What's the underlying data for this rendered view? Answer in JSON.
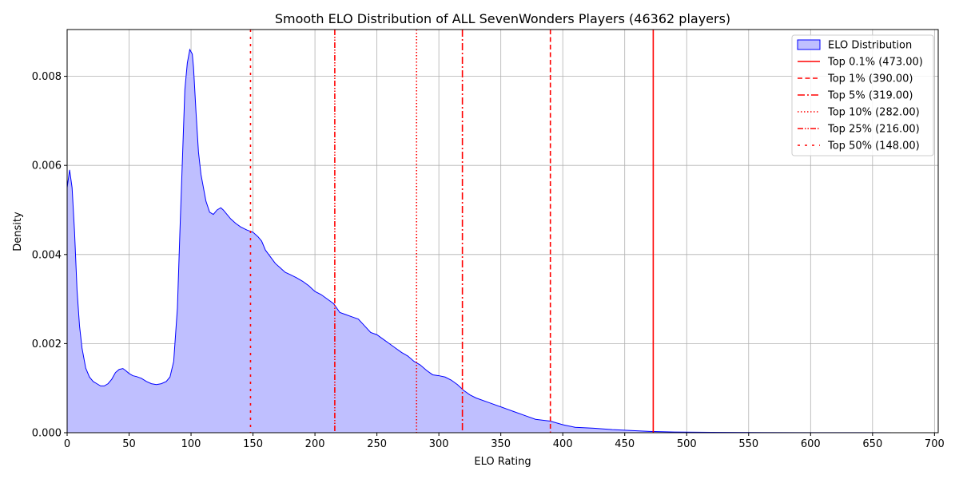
{
  "chart_data": {
    "type": "area",
    "title": "Smooth ELO Distribution of ALL SevenWonders Players (46362 players)",
    "xlabel": "ELO Rating",
    "ylabel": "Density",
    "xlim": [
      0,
      703
    ],
    "ylim": [
      0,
      0.00905
    ],
    "grid": true,
    "legend_position": "top-right",
    "x_ticks": [
      {
        "v": 0,
        "label": "0"
      },
      {
        "v": 50,
        "label": "50"
      },
      {
        "v": 100,
        "label": "100"
      },
      {
        "v": 150,
        "label": "150"
      },
      {
        "v": 200,
        "label": "200"
      },
      {
        "v": 250,
        "label": "250"
      },
      {
        "v": 300,
        "label": "300"
      },
      {
        "v": 350,
        "label": "350"
      },
      {
        "v": 400,
        "label": "400"
      },
      {
        "v": 450,
        "label": "450"
      },
      {
        "v": 500,
        "label": "500"
      },
      {
        "v": 550,
        "label": "550"
      },
      {
        "v": 600,
        "label": "600"
      },
      {
        "v": 650,
        "label": "650"
      },
      {
        "v": 700,
        "label": "700"
      }
    ],
    "y_ticks": [
      {
        "v": 0,
        "label": "0.000"
      },
      {
        "v": 0.002,
        "label": "0.002"
      },
      {
        "v": 0.004,
        "label": "0.004"
      },
      {
        "v": 0.006,
        "label": "0.006"
      },
      {
        "v": 0.008,
        "label": "0.008"
      }
    ],
    "series": [
      {
        "name": "ELO Distribution",
        "line_color": "#0000ff",
        "fill_color": "#bfbfff",
        "x": [
          0,
          2,
          4,
          6,
          8,
          10,
          12,
          15,
          18,
          21,
          24,
          27,
          30,
          33,
          36,
          39,
          42,
          45,
          47,
          50,
          53,
          56,
          60,
          64,
          68,
          72,
          76,
          80,
          83,
          86,
          89,
          91,
          93,
          95,
          97,
          99,
          101,
          102,
          104,
          106,
          108,
          112,
          115,
          118,
          121,
          124,
          126,
          129,
          132,
          136,
          140,
          145,
          150,
          154,
          157,
          160,
          164,
          168,
          172,
          176,
          180,
          185,
          190,
          195,
          200,
          205,
          210,
          215,
          220,
          225,
          230,
          235,
          240,
          245,
          250,
          255,
          260,
          265,
          270,
          275,
          280,
          285,
          290,
          295,
          300,
          305,
          310,
          315,
          320,
          325,
          330,
          340,
          350,
          360,
          370,
          378,
          390,
          400,
          410,
          425,
          440,
          455,
          470,
          490,
          520,
          560,
          600,
          640,
          668
        ],
        "y": [
          0.0055,
          0.0059,
          0.0055,
          0.0045,
          0.0032,
          0.0024,
          0.0019,
          0.00145,
          0.00125,
          0.00115,
          0.0011,
          0.00105,
          0.00105,
          0.0011,
          0.0012,
          0.00135,
          0.00142,
          0.00144,
          0.0014,
          0.00133,
          0.00128,
          0.00126,
          0.00122,
          0.00115,
          0.0011,
          0.00108,
          0.0011,
          0.00115,
          0.00125,
          0.0016,
          0.0028,
          0.0045,
          0.0061,
          0.0077,
          0.0083,
          0.0086,
          0.0085,
          0.0082,
          0.0072,
          0.0063,
          0.0058,
          0.0052,
          0.00495,
          0.0049,
          0.005,
          0.00505,
          0.005,
          0.0049,
          0.0048,
          0.0047,
          0.00462,
          0.00455,
          0.0045,
          0.0044,
          0.0043,
          0.0041,
          0.00395,
          0.0038,
          0.0037,
          0.0036,
          0.00355,
          0.00348,
          0.0034,
          0.0033,
          0.00317,
          0.0031,
          0.003,
          0.0029,
          0.0027,
          0.00265,
          0.0026,
          0.00255,
          0.0024,
          0.00225,
          0.0022,
          0.0021,
          0.002,
          0.0019,
          0.0018,
          0.00172,
          0.0016,
          0.00152,
          0.0014,
          0.0013,
          0.00128,
          0.00125,
          0.00118,
          0.00108,
          0.00095,
          0.00085,
          0.00078,
          0.00068,
          0.00058,
          0.00048,
          0.00038,
          0.0003,
          0.00026,
          0.00018,
          0.00012,
          0.0001,
          7e-05,
          5e-05,
          3e-05,
          1.5e-05,
          8e-06,
          5e-06,
          3e-06,
          2e-06,
          1e-06
        ]
      }
    ],
    "reference_lines": [
      {
        "name": "Top 0.1% (473.00)",
        "x": 473.0,
        "style": "solid"
      },
      {
        "name": "Top 1% (390.00)",
        "x": 390.0,
        "style": "dashed"
      },
      {
        "name": "Top 5% (319.00)",
        "x": 319.0,
        "style": "dashdot"
      },
      {
        "name": "Top 10% (282.00)",
        "x": 282.0,
        "style": "dotted"
      },
      {
        "name": "Top 25% (216.00)",
        "x": 216.0,
        "style": "dashdotdot"
      },
      {
        "name": "Top 50% (148.00)",
        "x": 148.0,
        "style": "loosedash"
      }
    ],
    "reference_line_color": "#ff0000"
  }
}
